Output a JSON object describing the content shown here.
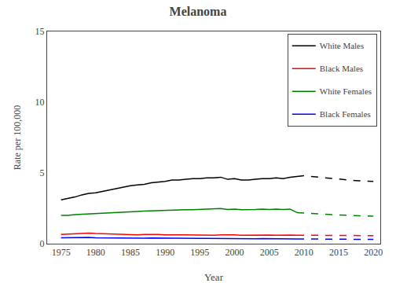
{
  "chart_data": {
    "type": "line",
    "title": "Melanoma",
    "xlabel": "Year",
    "ylabel": "Rate per 100,000",
    "xlim": [
      1973,
      2021
    ],
    "xticks": [
      1975,
      1980,
      1985,
      1990,
      1995,
      2000,
      2005,
      2010,
      2015,
      2020
    ],
    "ylim": [
      0,
      15
    ],
    "yticks": [
      0,
      5,
      10,
      15
    ],
    "grid": false,
    "legend": "upper right",
    "series": [
      {
        "name": "White Males",
        "color": "#000000",
        "line_style": "solid",
        "x": [
          1975,
          1976,
          1977,
          1978,
          1979,
          1980,
          1981,
          1982,
          1983,
          1984,
          1985,
          1986,
          1987,
          1988,
          1989,
          1990,
          1991,
          1992,
          1993,
          1994,
          1995,
          1996,
          1997,
          1998,
          1999,
          2000,
          2001,
          2002,
          2003,
          2004,
          2005,
          2006,
          2007,
          2008,
          2009
        ],
        "values": [
          3.1,
          3.2,
          3.3,
          3.45,
          3.55,
          3.6,
          3.7,
          3.8,
          3.9,
          4.0,
          4.1,
          4.15,
          4.2,
          4.3,
          4.35,
          4.4,
          4.5,
          4.5,
          4.55,
          4.6,
          4.6,
          4.65,
          4.65,
          4.7,
          4.55,
          4.6,
          4.5,
          4.5,
          4.55,
          4.6,
          4.6,
          4.65,
          4.6,
          4.7,
          4.75
        ]
      },
      {
        "name": "White Males",
        "color": "#000000",
        "line_style": "dashed",
        "x": [
          2009,
          2010,
          2011,
          2012,
          2013,
          2014,
          2015,
          2016,
          2017,
          2018,
          2019,
          2020
        ],
        "values": [
          4.75,
          4.8,
          4.75,
          4.7,
          4.65,
          4.6,
          4.55,
          4.5,
          4.48,
          4.45,
          4.42,
          4.4
        ]
      },
      {
        "name": "Black Males",
        "color": "#ff0000",
        "line_style": "solid",
        "x": [
          1975,
          1976,
          1977,
          1978,
          1979,
          1980,
          1981,
          1982,
          1983,
          1984,
          1985,
          1986,
          1987,
          1988,
          1989,
          1990,
          1991,
          1992,
          1993,
          1994,
          1995,
          1996,
          1997,
          1998,
          1999,
          2000,
          2001,
          2002,
          2003,
          2004,
          2005,
          2006,
          2007,
          2008,
          2009
        ],
        "values": [
          0.65,
          0.68,
          0.7,
          0.72,
          0.75,
          0.72,
          0.7,
          0.68,
          0.66,
          0.65,
          0.62,
          0.63,
          0.65,
          0.67,
          0.65,
          0.62,
          0.6,
          0.62,
          0.63,
          0.62,
          0.6,
          0.61,
          0.6,
          0.62,
          0.63,
          0.62,
          0.6,
          0.61,
          0.6,
          0.62,
          0.61,
          0.6,
          0.62,
          0.61,
          0.6
        ]
      },
      {
        "name": "Black Males",
        "color": "#ff0000",
        "line_style": "dashed",
        "x": [
          2009,
          2010,
          2011,
          2012,
          2013,
          2014,
          2015,
          2016,
          2017,
          2018,
          2019,
          2020
        ],
        "values": [
          0.6,
          0.61,
          0.6,
          0.6,
          0.59,
          0.59,
          0.58,
          0.58,
          0.58,
          0.57,
          0.57,
          0.57
        ]
      },
      {
        "name": "White Females",
        "color": "#008000",
        "line_style": "solid",
        "x": [
          1975,
          1976,
          1977,
          1978,
          1979,
          1980,
          1981,
          1982,
          1983,
          1984,
          1985,
          1986,
          1987,
          1988,
          1989,
          1990,
          1991,
          1992,
          1993,
          1994,
          1995,
          1996,
          1997,
          1998,
          1999,
          2000,
          2001,
          2002,
          2003,
          2004,
          2005,
          2006,
          2007,
          2008,
          2009
        ],
        "values": [
          2.0,
          2.0,
          2.05,
          2.08,
          2.1,
          2.12,
          2.15,
          2.18,
          2.2,
          2.22,
          2.25,
          2.28,
          2.3,
          2.32,
          2.35,
          2.35,
          2.35,
          2.38,
          2.4,
          2.4,
          2.42,
          2.45,
          2.45,
          2.48,
          2.42,
          2.45,
          2.4,
          2.4,
          2.42,
          2.45,
          2.42,
          2.45,
          2.42,
          2.45,
          2.2
        ]
      },
      {
        "name": "White Females",
        "color": "#008000",
        "line_style": "dashed",
        "x": [
          2009,
          2010,
          2011,
          2012,
          2013,
          2014,
          2015,
          2016,
          2017,
          2018,
          2019,
          2020
        ],
        "values": [
          2.2,
          2.18,
          2.15,
          2.1,
          2.08,
          2.05,
          2.02,
          2.0,
          1.98,
          1.97,
          1.96,
          1.95
        ]
      },
      {
        "name": "Black Females",
        "color": "#0000ff",
        "line_style": "solid",
        "x": [
          1975,
          1976,
          1977,
          1978,
          1979,
          1980,
          1981,
          1982,
          1983,
          1984,
          1985,
          1986,
          1987,
          1988,
          1989,
          1990,
          1991,
          1992,
          1993,
          1994,
          1995,
          1996,
          1997,
          1998,
          1999,
          2000,
          2001,
          2002,
          2003,
          2004,
          2005,
          2006,
          2007,
          2008,
          2009
        ],
        "values": [
          0.42,
          0.43,
          0.44,
          0.43,
          0.44,
          0.42,
          0.41,
          0.4,
          0.39,
          0.38,
          0.37,
          0.38,
          0.39,
          0.4,
          0.39,
          0.38,
          0.37,
          0.38,
          0.39,
          0.38,
          0.37,
          0.38,
          0.37,
          0.38,
          0.37,
          0.36,
          0.35,
          0.36,
          0.35,
          0.36,
          0.35,
          0.36,
          0.35,
          0.35,
          0.34
        ]
      },
      {
        "name": "Black Females",
        "color": "#0000ff",
        "line_style": "dashed",
        "x": [
          2009,
          2010,
          2011,
          2012,
          2013,
          2014,
          2015,
          2016,
          2017,
          2018,
          2019,
          2020
        ],
        "values": [
          0.34,
          0.34,
          0.33,
          0.33,
          0.33,
          0.32,
          0.32,
          0.32,
          0.31,
          0.31,
          0.31,
          0.3
        ]
      }
    ]
  }
}
